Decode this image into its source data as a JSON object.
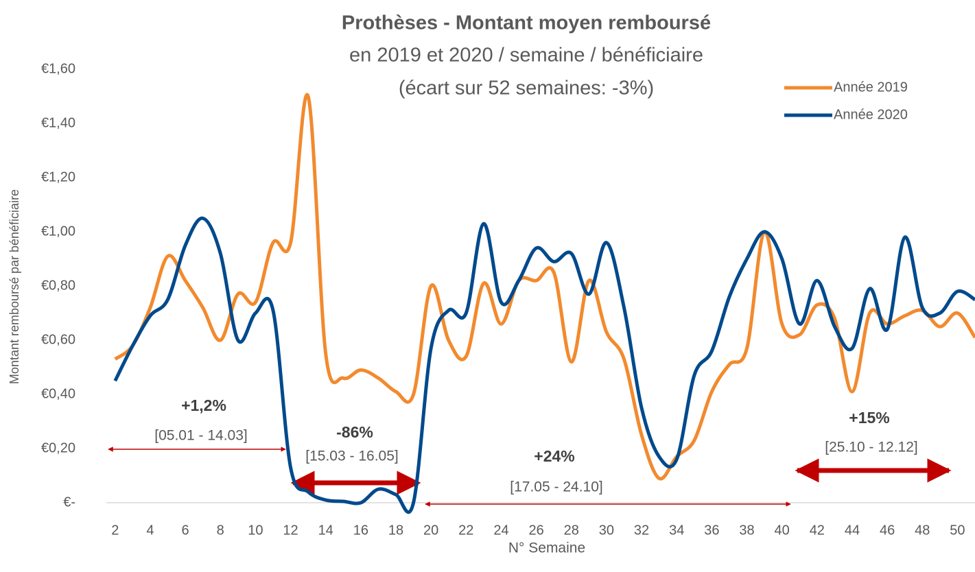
{
  "chart_data": {
    "type": "line",
    "title": "Prothèses - Montant moyen remboursé",
    "subtitle": [
      "en 2019 et 2020 / semaine / bénéficiaire",
      "(écart sur 52 semaines: -3%)"
    ],
    "x_label": "N° Semaine",
    "y_label": "Montant remboursé par bénéficiaire",
    "x": [
      2,
      3,
      4,
      5,
      6,
      7,
      8,
      9,
      10,
      11,
      12,
      13,
      14,
      15,
      16,
      17,
      18,
      19,
      20,
      21,
      22,
      23,
      24,
      25,
      26,
      27,
      28,
      29,
      30,
      31,
      32,
      33,
      34,
      35,
      36,
      37,
      38,
      39,
      40,
      41,
      42,
      43,
      44,
      45,
      46,
      47,
      48,
      49,
      50,
      51
    ],
    "xlim": [
      1.5,
      51
    ],
    "xticks": [
      2,
      4,
      6,
      8,
      10,
      12,
      14,
      16,
      18,
      20,
      22,
      24,
      26,
      28,
      30,
      32,
      34,
      36,
      38,
      40,
      42,
      44,
      46,
      48,
      50
    ],
    "ylim": [
      0,
      1.6
    ],
    "yticks": [
      {
        "value": 0,
        "label": "€-"
      },
      {
        "value": 0.2,
        "label": "€0,20"
      },
      {
        "value": 0.4,
        "label": "€0,40"
      },
      {
        "value": 0.6,
        "label": "€0,60"
      },
      {
        "value": 0.8,
        "label": "€0,80"
      },
      {
        "value": 1.0,
        "label": "€1,00"
      },
      {
        "value": 1.2,
        "label": "€1,20"
      },
      {
        "value": 1.4,
        "label": "€1,40"
      },
      {
        "value": 1.6,
        "label": "€1,60"
      }
    ],
    "legend": "top-right",
    "series": [
      {
        "name": "Année 2019",
        "color": "#f28a2e",
        "values": [
          0.53,
          0.58,
          0.72,
          0.91,
          0.82,
          0.72,
          0.6,
          0.77,
          0.74,
          0.96,
          0.96,
          1.5,
          0.55,
          0.46,
          0.49,
          0.46,
          0.41,
          0.4,
          0.8,
          0.6,
          0.54,
          0.81,
          0.66,
          0.82,
          0.82,
          0.85,
          0.52,
          0.82,
          0.63,
          0.53,
          0.25,
          0.09,
          0.17,
          0.23,
          0.41,
          0.51,
          0.57,
          1.0,
          0.66,
          0.62,
          0.73,
          0.68,
          0.41,
          0.7,
          0.66,
          0.69,
          0.71,
          0.65,
          0.7,
          0.61
        ]
      },
      {
        "name": "Année 2020",
        "color": "#004a8c",
        "values": [
          0.45,
          0.58,
          0.69,
          0.75,
          0.95,
          1.05,
          0.92,
          0.6,
          0.7,
          0.71,
          0.13,
          0.04,
          0.01,
          0.005,
          0.0,
          0.05,
          0.03,
          0.0,
          0.57,
          0.71,
          0.7,
          1.03,
          0.74,
          0.82,
          0.94,
          0.89,
          0.92,
          0.77,
          0.96,
          0.72,
          0.35,
          0.17,
          0.16,
          0.47,
          0.56,
          0.76,
          0.9,
          1.0,
          0.9,
          0.66,
          0.82,
          0.65,
          0.57,
          0.79,
          0.64,
          0.98,
          0.72,
          0.7,
          0.78,
          0.75
        ]
      }
    ],
    "annotations": [
      {
        "value": "+1,2%",
        "period": "[05.01 - 14.03]"
      },
      {
        "value": "-86%",
        "period": "[15.03 - 16.05]"
      },
      {
        "value": "+24%",
        "period": "[17.05 - 24.10]"
      },
      {
        "value": "+15%",
        "period": "[25.10 - 12.12]"
      }
    ]
  }
}
